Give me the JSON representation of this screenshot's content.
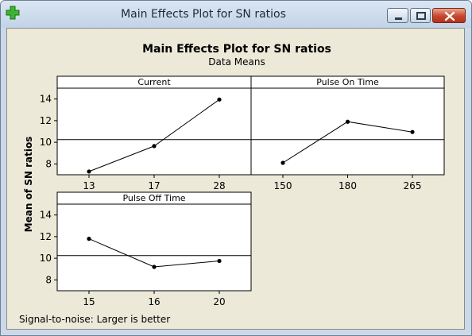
{
  "window": {
    "title": "Main Effects Plot for SN ratios",
    "icon": "green-plus-icon",
    "controls": [
      "minimize-icon",
      "maximize-icon",
      "close-icon"
    ]
  },
  "colors": {
    "titlebar": "#c8d7ea",
    "client_background": "#ece9d8",
    "panel_background": "#ffffff",
    "close_button": "#c7452c",
    "icon_green": "#3bb531"
  },
  "chart_data": {
    "type": "line",
    "title": "Main Effects Plot for SN ratios",
    "subtitle": "Data Means",
    "ylabel": "Mean of SN ratios",
    "ylim": [
      7,
      15
    ],
    "yticks": [
      8,
      10,
      12,
      14
    ],
    "overall_mean": 10.25,
    "footnote": "Signal-to-noise: Larger is better",
    "panels": [
      {
        "name": "Current",
        "categories": [
          "13",
          "17",
          "28"
        ],
        "values": [
          7.3,
          9.65,
          13.95
        ]
      },
      {
        "name": "Pulse On Time",
        "categories": [
          "150",
          "180",
          "265"
        ],
        "values": [
          8.1,
          11.9,
          10.95
        ]
      },
      {
        "name": "Pulse Off Time",
        "categories": [
          "15",
          "16",
          "20"
        ],
        "values": [
          11.8,
          9.2,
          9.75
        ]
      }
    ]
  }
}
